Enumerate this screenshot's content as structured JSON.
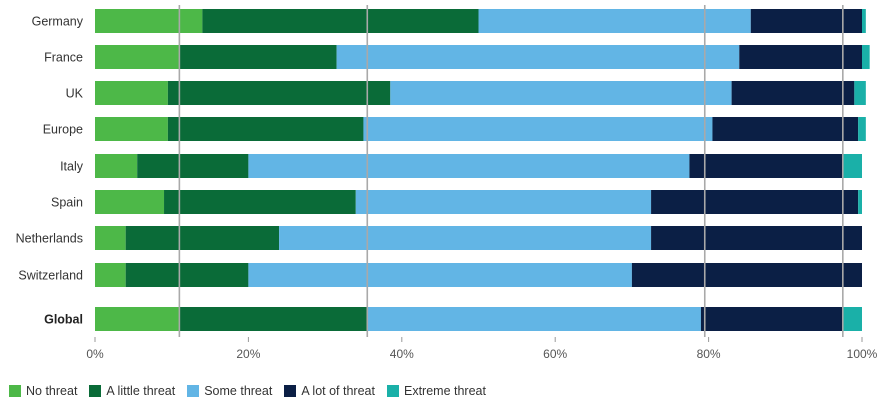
{
  "chart_data": {
    "type": "bar",
    "orientation": "horizontal",
    "stacked": true,
    "categories": [
      "Germany",
      "France",
      "UK",
      "Europe",
      "Italy",
      "Spain",
      "Netherlands",
      "Switzerland",
      "Global"
    ],
    "emphasized_category": "Global",
    "series": [
      {
        "name": "No threat",
        "color": "#4db848",
        "values": [
          14,
          11,
          9.5,
          9.5,
          5.5,
          9,
          4,
          4,
          11
        ]
      },
      {
        "name": "A little threat",
        "color": "#0a6b38",
        "values": [
          36,
          20.5,
          29,
          25.5,
          14.5,
          25,
          20,
          16,
          24.5
        ]
      },
      {
        "name": "Some threat",
        "color": "#62b5e5",
        "values": [
          35.5,
          52.5,
          44.5,
          45.5,
          57.5,
          38.5,
          48.5,
          50,
          43.5
        ]
      },
      {
        "name": "A lot of threat",
        "color": "#0b1f45",
        "values": [
          14.5,
          16,
          16,
          19,
          20,
          27,
          27.5,
          30,
          18.5
        ]
      },
      {
        "name": "Extreme threat",
        "color": "#1ab0a8",
        "values": [
          0.5,
          1,
          1.5,
          1,
          2.5,
          0.5,
          0,
          0,
          2.5
        ]
      }
    ],
    "xlim": [
      0,
      100
    ],
    "xticks": [
      0,
      20,
      40,
      60,
      80,
      100
    ],
    "tick_labels": [
      "0%",
      "20%",
      "40%",
      "60%",
      "80%",
      "100%"
    ],
    "gridlines": [
      11,
      35.5,
      79.5,
      97.5
    ],
    "legend_position": "bottom-left",
    "title": "",
    "xlabel": "",
    "ylabel": ""
  }
}
